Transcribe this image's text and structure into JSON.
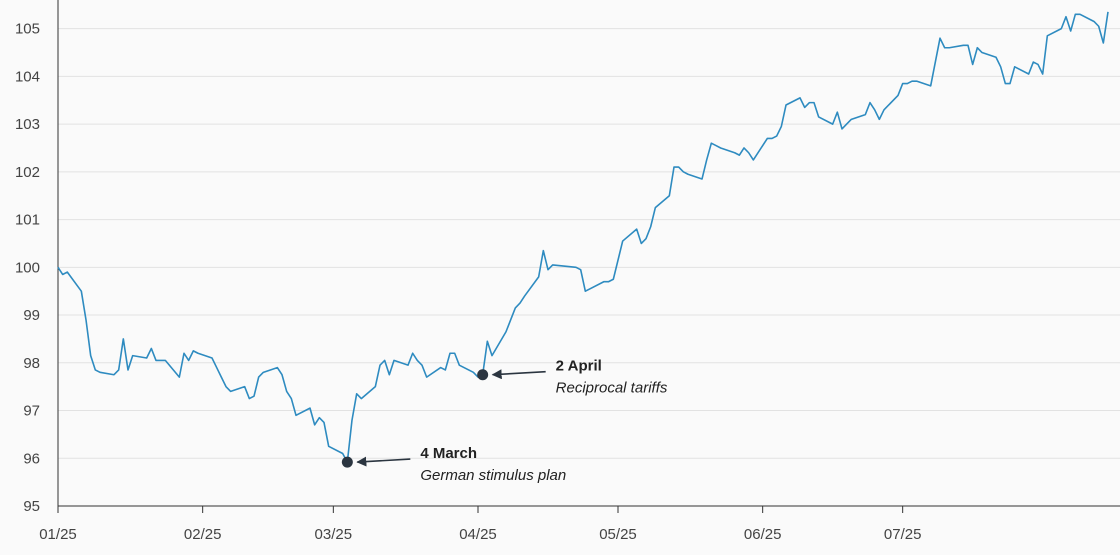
{
  "chart_data": {
    "type": "line",
    "title": "",
    "xlabel": "",
    "ylabel": "",
    "ylim": [
      95,
      105.6
    ],
    "y_ticks": [
      95,
      96,
      97,
      98,
      99,
      100,
      101,
      102,
      103,
      104,
      105
    ],
    "grid": true,
    "x_ticks": [
      {
        "label": "01/25",
        "x": "2025-01-01"
      },
      {
        "label": "02/25",
        "x": "2025-02-01"
      },
      {
        "label": "03/25",
        "x": "2025-03-01"
      },
      {
        "label": "04/25",
        "x": "2025-04-01"
      },
      {
        "label": "05/25",
        "x": "2025-05-01"
      },
      {
        "label": "06/25",
        "x": "2025-06-01"
      },
      {
        "label": "07/25",
        "x": "2025-07-01"
      }
    ],
    "series": [
      {
        "color": "#2e8bc0",
        "points": [
          [
            "2025-01-01",
            100.0
          ],
          [
            "2025-01-02",
            99.85
          ],
          [
            "2025-01-03",
            99.9
          ],
          [
            "2025-01-06",
            99.5
          ],
          [
            "2025-01-07",
            98.9
          ],
          [
            "2025-01-08",
            98.15
          ],
          [
            "2025-01-09",
            97.85
          ],
          [
            "2025-01-10",
            97.8
          ],
          [
            "2025-01-13",
            97.75
          ],
          [
            "2025-01-14",
            97.85
          ],
          [
            "2025-01-15",
            98.5
          ],
          [
            "2025-01-16",
            97.85
          ],
          [
            "2025-01-17",
            98.15
          ],
          [
            "2025-01-20",
            98.1
          ],
          [
            "2025-01-21",
            98.3
          ],
          [
            "2025-01-22",
            98.05
          ],
          [
            "2025-01-23",
            98.05
          ],
          [
            "2025-01-24",
            98.05
          ],
          [
            "2025-01-27",
            97.7
          ],
          [
            "2025-01-28",
            98.2
          ],
          [
            "2025-01-29",
            98.05
          ],
          [
            "2025-01-30",
            98.25
          ],
          [
            "2025-01-31",
            98.2
          ],
          [
            "2025-02-03",
            98.1
          ],
          [
            "2025-02-04",
            97.9
          ],
          [
            "2025-02-05",
            97.7
          ],
          [
            "2025-02-06",
            97.5
          ],
          [
            "2025-02-07",
            97.4
          ],
          [
            "2025-02-10",
            97.5
          ],
          [
            "2025-02-11",
            97.25
          ],
          [
            "2025-02-12",
            97.3
          ],
          [
            "2025-02-13",
            97.7
          ],
          [
            "2025-02-14",
            97.8
          ],
          [
            "2025-02-17",
            97.9
          ],
          [
            "2025-02-18",
            97.75
          ],
          [
            "2025-02-19",
            97.4
          ],
          [
            "2025-02-20",
            97.25
          ],
          [
            "2025-02-21",
            96.9
          ],
          [
            "2025-02-24",
            97.05
          ],
          [
            "2025-02-25",
            96.7
          ],
          [
            "2025-02-26",
            96.85
          ],
          [
            "2025-02-27",
            96.75
          ],
          [
            "2025-02-28",
            96.25
          ],
          [
            "2025-03-03",
            96.1
          ],
          [
            "2025-03-04",
            95.92
          ],
          [
            "2025-03-05",
            96.8
          ],
          [
            "2025-03-06",
            97.35
          ],
          [
            "2025-03-07",
            97.25
          ],
          [
            "2025-03-10",
            97.5
          ],
          [
            "2025-03-11",
            97.95
          ],
          [
            "2025-03-12",
            98.05
          ],
          [
            "2025-03-13",
            97.75
          ],
          [
            "2025-03-14",
            98.05
          ],
          [
            "2025-03-17",
            97.95
          ],
          [
            "2025-03-18",
            98.2
          ],
          [
            "2025-03-19",
            98.05
          ],
          [
            "2025-03-20",
            97.95
          ],
          [
            "2025-03-21",
            97.7
          ],
          [
            "2025-03-24",
            97.9
          ],
          [
            "2025-03-25",
            97.85
          ],
          [
            "2025-03-26",
            98.2
          ],
          [
            "2025-03-27",
            98.2
          ],
          [
            "2025-03-28",
            97.95
          ],
          [
            "2025-03-31",
            97.8
          ],
          [
            "2025-04-01",
            97.7
          ],
          [
            "2025-04-02",
            97.75
          ],
          [
            "2025-04-03",
            98.45
          ],
          [
            "2025-04-04",
            98.15
          ],
          [
            "2025-04-07",
            98.65
          ],
          [
            "2025-04-08",
            98.9
          ],
          [
            "2025-04-09",
            99.15
          ],
          [
            "2025-04-10",
            99.25
          ],
          [
            "2025-04-11",
            99.4
          ],
          [
            "2025-04-14",
            99.8
          ],
          [
            "2025-04-15",
            100.35
          ],
          [
            "2025-04-16",
            99.95
          ],
          [
            "2025-04-17",
            100.05
          ],
          [
            "2025-04-22",
            100.0
          ],
          [
            "2025-04-23",
            99.95
          ],
          [
            "2025-04-24",
            99.5
          ],
          [
            "2025-04-25",
            99.55
          ],
          [
            "2025-04-28",
            99.7
          ],
          [
            "2025-04-29",
            99.7
          ],
          [
            "2025-04-30",
            99.75
          ],
          [
            "2025-05-02",
            100.55
          ],
          [
            "2025-05-05",
            100.8
          ],
          [
            "2025-05-06",
            100.5
          ],
          [
            "2025-05-07",
            100.6
          ],
          [
            "2025-05-08",
            100.85
          ],
          [
            "2025-05-09",
            101.25
          ],
          [
            "2025-05-12",
            101.5
          ],
          [
            "2025-05-13",
            102.1
          ],
          [
            "2025-05-14",
            102.1
          ],
          [
            "2025-05-15",
            102.0
          ],
          [
            "2025-05-16",
            101.95
          ],
          [
            "2025-05-19",
            101.85
          ],
          [
            "2025-05-20",
            102.25
          ],
          [
            "2025-05-21",
            102.6
          ],
          [
            "2025-05-22",
            102.55
          ],
          [
            "2025-05-23",
            102.5
          ],
          [
            "2025-05-26",
            102.4
          ],
          [
            "2025-05-27",
            102.35
          ],
          [
            "2025-05-28",
            102.5
          ],
          [
            "2025-05-29",
            102.4
          ],
          [
            "2025-05-30",
            102.25
          ],
          [
            "2025-06-02",
            102.7
          ],
          [
            "2025-06-03",
            102.7
          ],
          [
            "2025-06-04",
            102.75
          ],
          [
            "2025-06-05",
            102.95
          ],
          [
            "2025-06-06",
            103.4
          ],
          [
            "2025-06-09",
            103.55
          ],
          [
            "2025-06-10",
            103.35
          ],
          [
            "2025-06-11",
            103.45
          ],
          [
            "2025-06-12",
            103.45
          ],
          [
            "2025-06-13",
            103.15
          ],
          [
            "2025-06-16",
            103.0
          ],
          [
            "2025-06-17",
            103.25
          ],
          [
            "2025-06-18",
            102.9
          ],
          [
            "2025-06-19",
            103.0
          ],
          [
            "2025-06-20",
            103.1
          ],
          [
            "2025-06-23",
            103.2
          ],
          [
            "2025-06-24",
            103.45
          ],
          [
            "2025-06-25",
            103.3
          ],
          [
            "2025-06-26",
            103.1
          ],
          [
            "2025-06-27",
            103.3
          ],
          [
            "2025-06-30",
            103.6
          ],
          [
            "2025-07-01",
            103.85
          ],
          [
            "2025-07-02",
            103.85
          ],
          [
            "2025-07-03",
            103.9
          ],
          [
            "2025-07-04",
            103.9
          ],
          [
            "2025-07-07",
            103.8
          ],
          [
            "2025-07-08",
            104.3
          ],
          [
            "2025-07-09",
            104.8
          ],
          [
            "2025-07-10",
            104.6
          ],
          [
            "2025-07-11",
            104.6
          ],
          [
            "2025-07-14",
            104.65
          ],
          [
            "2025-07-15",
            104.65
          ],
          [
            "2025-07-16",
            104.25
          ],
          [
            "2025-07-17",
            104.6
          ],
          [
            "2025-07-18",
            104.5
          ],
          [
            "2025-07-21",
            104.4
          ],
          [
            "2025-07-22",
            104.2
          ],
          [
            "2025-07-23",
            103.85
          ],
          [
            "2025-07-24",
            103.85
          ],
          [
            "2025-07-25",
            104.2
          ],
          [
            "2025-07-28",
            104.05
          ],
          [
            "2025-07-29",
            104.3
          ],
          [
            "2025-07-30",
            104.25
          ],
          [
            "2025-07-31",
            104.05
          ],
          [
            "2025-08-01",
            104.85
          ],
          [
            "2025-08-04",
            105.0
          ],
          [
            "2025-08-05",
            105.25
          ],
          [
            "2025-08-06",
            104.95
          ],
          [
            "2025-08-07",
            105.3
          ],
          [
            "2025-08-08",
            105.3
          ],
          [
            "2025-08-11",
            105.15
          ],
          [
            "2025-08-12",
            105.05
          ],
          [
            "2025-08-13",
            104.7
          ],
          [
            "2025-08-14",
            105.35
          ]
        ]
      }
    ],
    "annotations": [
      {
        "title": "2 April",
        "subtitle": "Reciprocal tariffs",
        "x": "2025-04-02",
        "y": 97.75
      },
      {
        "title": "4 March",
        "subtitle": "German stimulus plan",
        "x": "2025-03-04",
        "y": 95.92
      }
    ],
    "colors": {
      "line": "#2e8bc0",
      "grid": "#e2e2e2",
      "axis": "#333333",
      "marker": "#2b3540"
    }
  }
}
